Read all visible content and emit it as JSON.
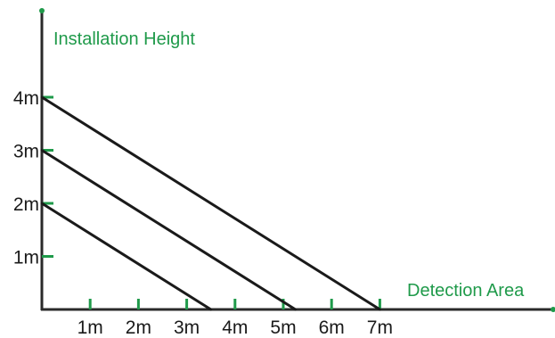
{
  "colors": {
    "axis": "#2a2a2a",
    "tick": "#1f9a4a",
    "title": "#1f9a4a",
    "label": "#1a1a1a",
    "line": "#1a1a1a"
  },
  "diagram": {
    "y_axis_title": "Installation Height",
    "x_axis_title": "Detection Area"
  },
  "chart_data": {
    "type": "line",
    "title": "",
    "xlabel": "Detection Area",
    "ylabel": "Installation Height",
    "x_ticks": [
      "1m",
      "2m",
      "3m",
      "4m",
      "5m",
      "6m",
      "7m"
    ],
    "y_ticks": [
      "1m",
      "2m",
      "3m",
      "4m"
    ],
    "x_unit": "m",
    "y_unit": "m",
    "xlim": [
      0,
      7
    ],
    "ylim": [
      0,
      4
    ],
    "grid": false,
    "series": [
      {
        "x": [
          0,
          3.5
        ],
        "y": [
          2,
          0
        ]
      },
      {
        "x": [
          0,
          5.25
        ],
        "y": [
          3,
          0
        ]
      },
      {
        "x": [
          0,
          7
        ],
        "y": [
          4,
          0
        ]
      }
    ]
  }
}
